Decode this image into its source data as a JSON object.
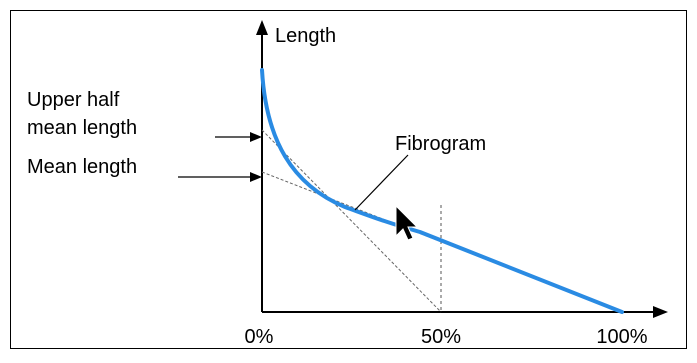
{
  "labels": {
    "y_axis": "Length",
    "upper_half_line1": "Upper half",
    "upper_half_line2": "mean length",
    "mean_length": "Mean length",
    "curve": "Fibrogram"
  },
  "x_ticks": [
    "0%",
    "50%",
    "100%"
  ],
  "colors": {
    "border": "#000000",
    "curve": "#2a8be3",
    "axes": "#000000",
    "dashed": "#555555"
  }
}
